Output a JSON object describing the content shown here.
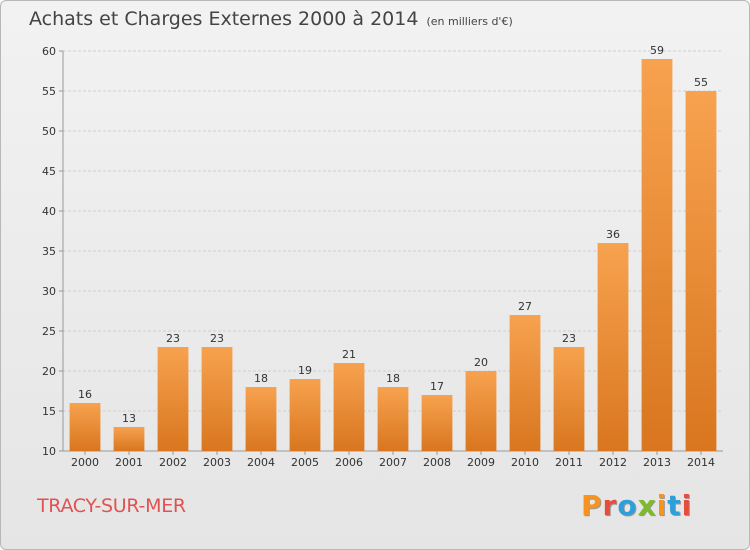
{
  "header": {
    "title": "Achats et Charges Externes 2000 à 2014",
    "subtitle": "(en milliers d'€)"
  },
  "footer": {
    "place": "TRACY-SUR-MER",
    "brand": "Proxiti",
    "brand_colors": [
      "#f7931e",
      "#e84c3d",
      "#2e9fd8",
      "#7dbb2d",
      "#f7931e",
      "#2e9fd8",
      "#e84c3d"
    ]
  },
  "colors": {
    "bar_light": "#f7a24f",
    "bar_dark": "#d9761f",
    "grid": "#cfcfcf",
    "axis": "#999999"
  },
  "chart_data": {
    "type": "bar",
    "categories": [
      "2000",
      "2001",
      "2002",
      "2003",
      "2004",
      "2005",
      "2006",
      "2007",
      "2008",
      "2009",
      "2010",
      "2011",
      "2012",
      "2013",
      "2014"
    ],
    "values": [
      16,
      13,
      23,
      23,
      18,
      19,
      21,
      18,
      17,
      20,
      27,
      23,
      36,
      59,
      55
    ],
    "ylim": [
      10,
      60
    ],
    "yticks": [
      10,
      15,
      20,
      25,
      30,
      35,
      40,
      45,
      50,
      55,
      60
    ],
    "grid": true,
    "xlabel": "",
    "ylabel": ""
  }
}
